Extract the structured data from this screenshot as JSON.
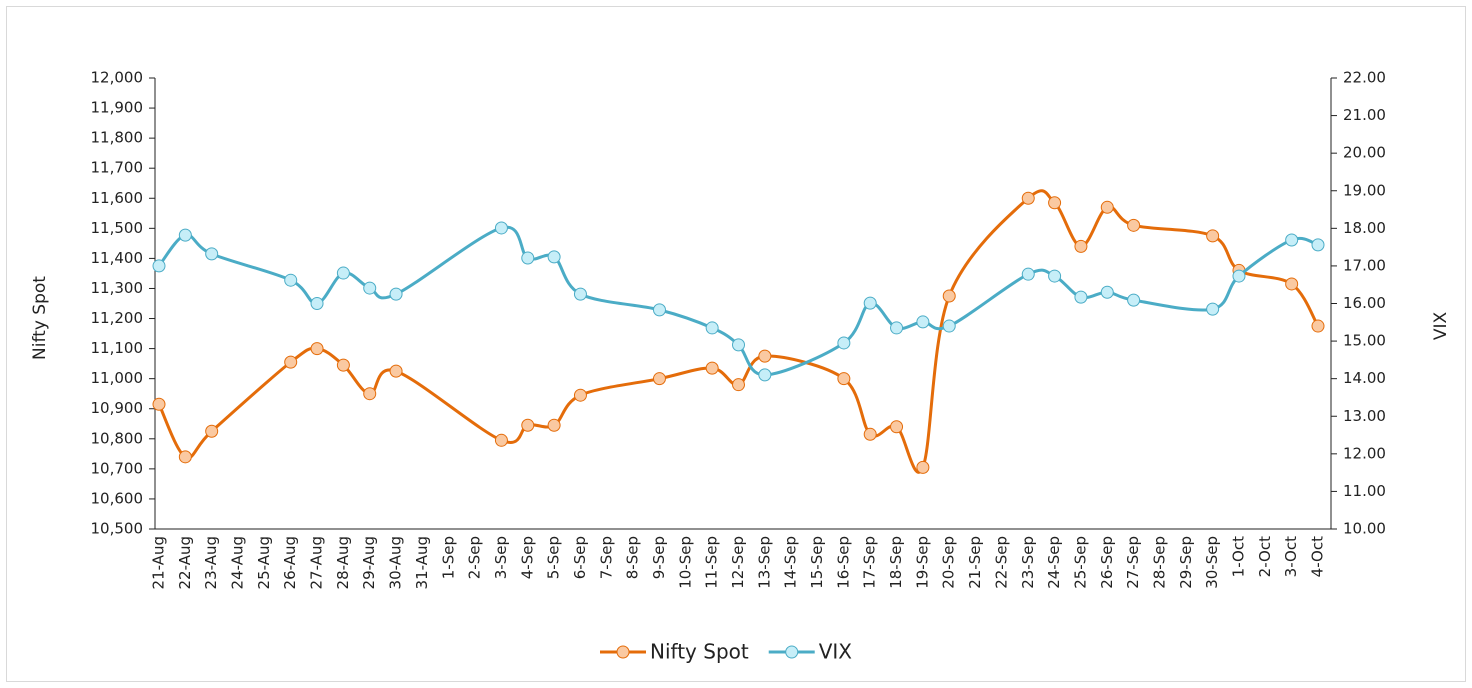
{
  "chart_data": {
    "type": "line",
    "categories": [
      "21-Aug",
      "22-Aug",
      "23-Aug",
      "24-Aug",
      "25-Aug",
      "26-Aug",
      "27-Aug",
      "28-Aug",
      "29-Aug",
      "30-Aug",
      "31-Aug",
      "1-Sep",
      "2-Sep",
      "3-Sep",
      "4-Sep",
      "5-Sep",
      "6-Sep",
      "7-Sep",
      "8-Sep",
      "9-Sep",
      "10-Sep",
      "11-Sep",
      "12-Sep",
      "13-Sep",
      "14-Sep",
      "15-Sep",
      "16-Sep",
      "17-Sep",
      "18-Sep",
      "19-Sep",
      "20-Sep",
      "21-Sep",
      "22-Sep",
      "23-Sep",
      "24-Sep",
      "25-Sep",
      "26-Sep",
      "27-Sep",
      "28-Sep",
      "29-Sep",
      "30-Sep",
      "1-Oct",
      "2-Oct",
      "3-Oct",
      "4-Oct"
    ],
    "y_label": "Nifty Spot",
    "y2_label": "VIX",
    "ylim": [
      10500,
      12000
    ],
    "yticks": [
      {
        "value": 10500,
        "label": "10,500"
      },
      {
        "value": 10600,
        "label": "10,600"
      },
      {
        "value": 10700,
        "label": "10,700"
      },
      {
        "value": 10800,
        "label": "10,800"
      },
      {
        "value": 10900,
        "label": "10,900"
      },
      {
        "value": 11000,
        "label": "11,000"
      },
      {
        "value": 11100,
        "label": "11,100"
      },
      {
        "value": 11200,
        "label": "11,200"
      },
      {
        "value": 11300,
        "label": "11,300"
      },
      {
        "value": 11400,
        "label": "11,400"
      },
      {
        "value": 11500,
        "label": "11,500"
      },
      {
        "value": 11600,
        "label": "11,600"
      },
      {
        "value": 11700,
        "label": "11,700"
      },
      {
        "value": 11800,
        "label": "11,800"
      },
      {
        "value": 11900,
        "label": "11,900"
      },
      {
        "value": 12000,
        "label": "12,000"
      }
    ],
    "y2lim": [
      10,
      22
    ],
    "y2ticks": [
      {
        "value": 10,
        "label": "10.00"
      },
      {
        "value": 11,
        "label": "11.00"
      },
      {
        "value": 12,
        "label": "12.00"
      },
      {
        "value": 13,
        "label": "13.00"
      },
      {
        "value": 14,
        "label": "14.00"
      },
      {
        "value": 15,
        "label": "15.00"
      },
      {
        "value": 16,
        "label": "16.00"
      },
      {
        "value": 17,
        "label": "17.00"
      },
      {
        "value": 18,
        "label": "18.00"
      },
      {
        "value": 19,
        "label": "19.00"
      },
      {
        "value": 20,
        "label": "20.00"
      },
      {
        "value": 21,
        "label": "21.00"
      },
      {
        "value": 22,
        "label": "22.00"
      }
    ],
    "legend": "bottom",
    "series": [
      {
        "name": "Nifty Spot",
        "color": "#e46c0a",
        "marker_color": "#fac9a1",
        "x": [
          "21-Aug",
          "22-Aug",
          "23-Aug",
          "26-Aug",
          "27-Aug",
          "28-Aug",
          "29-Aug",
          "30-Aug",
          "3-Sep",
          "4-Sep",
          "5-Sep",
          "6-Sep",
          "9-Sep",
          "11-Sep",
          "12-Sep",
          "13-Sep",
          "16-Sep",
          "17-Sep",
          "18-Sep",
          "19-Sep",
          "20-Sep",
          "23-Sep",
          "24-Sep",
          "25-Sep",
          "26-Sep",
          "27-Sep",
          "30-Sep",
          "1-Oct",
          "3-Oct",
          "4-Oct"
        ],
        "values": [
          10915,
          10740,
          10825,
          11055,
          11100,
          11045,
          10950,
          11025,
          10795,
          10845,
          10845,
          10945,
          11000,
          11035,
          10980,
          11075,
          11000,
          10815,
          10840,
          10705,
          11275,
          11600,
          11585,
          11440,
          11570,
          11510,
          11475,
          11360,
          11315,
          11175
        ]
      },
      {
        "name": "VIX",
        "color": "#4bacc6",
        "marker_color": "#c6eef8",
        "axis": "y2",
        "x": [
          "21-Aug",
          "22-Aug",
          "23-Aug",
          "26-Aug",
          "27-Aug",
          "28-Aug",
          "29-Aug",
          "30-Aug",
          "3-Sep",
          "4-Sep",
          "5-Sep",
          "6-Sep",
          "9-Sep",
          "11-Sep",
          "12-Sep",
          "13-Sep",
          "16-Sep",
          "17-Sep",
          "18-Sep",
          "19-Sep",
          "20-Sep",
          "23-Sep",
          "24-Sep",
          "25-Sep",
          "26-Sep",
          "27-Sep",
          "30-Sep",
          "1-Oct",
          "3-Oct",
          "4-Oct"
        ],
        "values": [
          17.0,
          17.82,
          17.32,
          16.62,
          16.0,
          16.81,
          16.41,
          16.25,
          18.01,
          17.21,
          17.24,
          16.25,
          15.83,
          15.35,
          14.9,
          14.1,
          14.95,
          16.01,
          15.35,
          15.51,
          15.4,
          16.78,
          16.73,
          16.17,
          16.3,
          16.09,
          15.85,
          16.73,
          17.69,
          17.56
        ]
      }
    ]
  }
}
